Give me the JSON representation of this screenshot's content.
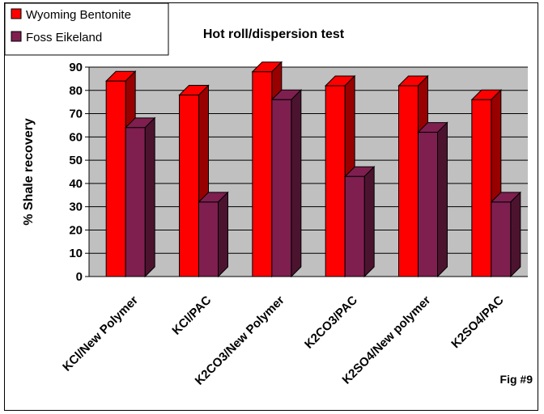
{
  "chart_data": {
    "type": "bar",
    "title": "Hot roll/dispersion test",
    "xlabel": "",
    "ylabel": "% Shale recovery",
    "categories": [
      "KCl/New Polymer",
      "KCl/PAC",
      "K2CO3/New Polymer",
      "K2CO3/PAC",
      "K2SO4/New polymer",
      "K2SO4/PAC"
    ],
    "series": [
      {
        "name": "Wyoming Bentonite",
        "color": "#ff0000",
        "values": [
          84,
          78,
          88,
          82,
          82,
          76
        ]
      },
      {
        "name": "Foss Eikeland",
        "color": "#7f1f4f",
        "values": [
          64,
          32,
          76,
          43,
          62,
          32
        ]
      }
    ],
    "ylim": [
      0,
      90
    ],
    "yticks": [
      0,
      10,
      20,
      30,
      40,
      50,
      60,
      70,
      80,
      90
    ],
    "grid": true,
    "legend_position": "top-left",
    "plot_background": "#c0c0c0",
    "annotation": "Fig #9"
  }
}
